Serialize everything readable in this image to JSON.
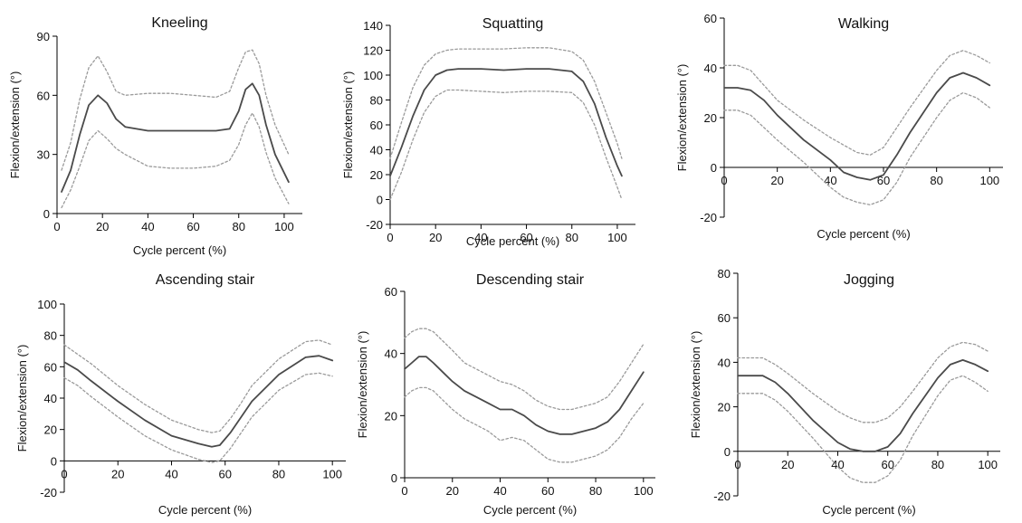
{
  "figure": {
    "line_color": "#4a4a4a",
    "band_color": "#9a9a9a",
    "axis_color": "#000000"
  },
  "chart_data": [
    {
      "type": "line",
      "title": "Kneeling",
      "xlabel": "Cycle percent (%)",
      "ylabel": "Flexion/extension (°)",
      "xlim": [
        0,
        108
      ],
      "ylim": [
        0,
        90
      ],
      "xticks": [
        0,
        20,
        40,
        60,
        80,
        100
      ],
      "yticks": [
        0,
        30,
        60,
        90
      ],
      "zero_line": false,
      "grid": false,
      "series": [
        {
          "style": "solid",
          "x": [
            2,
            6,
            10,
            14,
            18,
            22,
            26,
            30,
            40,
            50,
            60,
            70,
            76,
            80,
            83,
            86,
            89,
            92,
            96,
            102
          ],
          "y": [
            11,
            22,
            40,
            55,
            60,
            56,
            48,
            44,
            42,
            42,
            42,
            42,
            43,
            52,
            63,
            66,
            60,
            45,
            30,
            16
          ]
        },
        {
          "style": "dashed",
          "x": [
            2,
            6,
            10,
            14,
            18,
            22,
            26,
            30,
            40,
            50,
            60,
            70,
            76,
            80,
            83,
            86,
            89,
            92,
            96,
            102
          ],
          "y": [
            22,
            36,
            58,
            74,
            80,
            72,
            62,
            60,
            61,
            61,
            60,
            59,
            62,
            74,
            82,
            83,
            76,
            60,
            45,
            30
          ]
        },
        {
          "style": "dashed",
          "x": [
            2,
            6,
            10,
            14,
            18,
            22,
            26,
            30,
            40,
            50,
            60,
            70,
            76,
            80,
            83,
            86,
            89,
            92,
            96,
            102
          ],
          "y": [
            3,
            12,
            24,
            37,
            42,
            38,
            33,
            30,
            24,
            23,
            23,
            24,
            27,
            35,
            45,
            51,
            44,
            31,
            18,
            5
          ]
        }
      ]
    },
    {
      "type": "line",
      "title": "Squatting",
      "xlabel": "Cycle percent (%)",
      "ylabel": "Flexion/extension (°)",
      "xlim": [
        0,
        108
      ],
      "ylim": [
        -20,
        140
      ],
      "xticks": [
        0,
        20,
        40,
        60,
        80,
        100
      ],
      "yticks": [
        -20,
        0,
        20,
        40,
        60,
        80,
        100,
        120,
        140
      ],
      "zero_line": false,
      "grid": false,
      "series": [
        {
          "style": "solid",
          "x": [
            0,
            5,
            10,
            15,
            20,
            25,
            30,
            40,
            50,
            60,
            70,
            80,
            85,
            90,
            95,
            100,
            102
          ],
          "y": [
            19,
            42,
            67,
            88,
            100,
            104,
            105,
            105,
            104,
            105,
            105,
            103,
            95,
            77,
            50,
            27,
            19
          ]
        },
        {
          "style": "dashed",
          "x": [
            0,
            5,
            10,
            15,
            20,
            25,
            30,
            40,
            50,
            60,
            70,
            80,
            85,
            90,
            95,
            100,
            102
          ],
          "y": [
            33,
            62,
            90,
            108,
            117,
            120,
            121,
            121,
            121,
            122,
            122,
            119,
            112,
            95,
            70,
            45,
            33
          ]
        },
        {
          "style": "dashed",
          "x": [
            0,
            5,
            10,
            15,
            20,
            25,
            30,
            40,
            50,
            60,
            70,
            80,
            85,
            90,
            95,
            100,
            102
          ],
          "y": [
            0,
            22,
            48,
            70,
            83,
            88,
            88,
            87,
            86,
            87,
            87,
            86,
            78,
            60,
            34,
            10,
            0
          ]
        }
      ]
    },
    {
      "type": "line",
      "title": "Walking",
      "xlabel": "Cycle percent (%)",
      "ylabel": "Flexion/extension (°)",
      "xlim": [
        0,
        105
      ],
      "ylim": [
        -20,
        60
      ],
      "xticks": [
        0,
        20,
        40,
        60,
        80,
        100
      ],
      "yticks": [
        -20,
        0,
        20,
        40,
        60
      ],
      "zero_line": true,
      "grid": false,
      "series": [
        {
          "style": "solid",
          "x": [
            0,
            5,
            10,
            15,
            20,
            30,
            40,
            45,
            50,
            55,
            60,
            65,
            70,
            80,
            85,
            90,
            95,
            100
          ],
          "y": [
            32,
            32,
            31,
            27,
            21,
            11,
            3,
            -2,
            -4,
            -5,
            -3,
            5,
            14,
            30,
            36,
            38,
            36,
            33
          ]
        },
        {
          "style": "dashed",
          "x": [
            0,
            5,
            10,
            15,
            20,
            30,
            40,
            45,
            50,
            55,
            60,
            65,
            70,
            80,
            85,
            90,
            95,
            100
          ],
          "y": [
            41,
            41,
            39,
            33,
            27,
            19,
            12,
            9,
            6,
            5,
            8,
            16,
            24,
            39,
            45,
            47,
            45,
            42
          ]
        },
        {
          "style": "dashed",
          "x": [
            0,
            5,
            10,
            15,
            20,
            30,
            40,
            45,
            50,
            55,
            60,
            65,
            70,
            80,
            85,
            90,
            95,
            100
          ],
          "y": [
            23,
            23,
            21,
            16,
            11,
            2,
            -8,
            -12,
            -14,
            -15,
            -13,
            -6,
            4,
            20,
            27,
            30,
            28,
            24
          ]
        }
      ]
    },
    {
      "type": "line",
      "title": "Ascending stair",
      "xlabel": "Cycle percent (%)",
      "ylabel": "Flexion/extension (°)",
      "xlim": [
        0,
        105
      ],
      "ylim": [
        -20,
        100
      ],
      "xticks": [
        0,
        20,
        40,
        60,
        80,
        100
      ],
      "yticks": [
        -20,
        0,
        20,
        40,
        60,
        80,
        100
      ],
      "zero_line": true,
      "grid": false,
      "series": [
        {
          "style": "solid",
          "x": [
            0,
            5,
            10,
            20,
            30,
            40,
            50,
            55,
            58,
            62,
            66,
            70,
            80,
            90,
            95,
            100
          ],
          "y": [
            63,
            58,
            51,
            38,
            26,
            16,
            11,
            9,
            10,
            18,
            28,
            38,
            55,
            66,
            67,
            64
          ]
        },
        {
          "style": "dashed",
          "x": [
            0,
            5,
            10,
            20,
            30,
            40,
            50,
            55,
            58,
            62,
            66,
            70,
            80,
            90,
            95,
            100
          ],
          "y": [
            74,
            68,
            62,
            48,
            36,
            26,
            20,
            18,
            19,
            27,
            37,
            48,
            65,
            76,
            77,
            74
          ]
        },
        {
          "style": "dashed",
          "x": [
            0,
            5,
            10,
            20,
            30,
            40,
            50,
            55,
            58,
            62,
            66,
            70,
            80,
            90,
            95,
            100
          ],
          "y": [
            53,
            48,
            41,
            28,
            16,
            7,
            1,
            -1,
            0,
            8,
            18,
            28,
            45,
            55,
            56,
            54
          ]
        }
      ]
    },
    {
      "type": "line",
      "title": "Descending stair",
      "xlabel": "Cycle percent (%)",
      "ylabel": "Flexion/extension (°)",
      "xlim": [
        0,
        105
      ],
      "ylim": [
        0,
        60
      ],
      "xticks": [
        0,
        20,
        40,
        60,
        80,
        100
      ],
      "yticks": [
        0,
        20,
        40,
        60
      ],
      "zero_line": false,
      "grid": false,
      "series": [
        {
          "style": "solid",
          "x": [
            0,
            3,
            6,
            9,
            12,
            16,
            20,
            25,
            30,
            35,
            40,
            45,
            50,
            55,
            60,
            65,
            70,
            75,
            80,
            85,
            90,
            95,
            100
          ],
          "y": [
            35,
            37,
            39,
            39,
            37,
            34,
            31,
            28,
            26,
            24,
            22,
            22,
            20,
            17,
            15,
            14,
            14,
            15,
            16,
            18,
            22,
            28,
            34
          ]
        },
        {
          "style": "dashed",
          "x": [
            0,
            3,
            6,
            9,
            12,
            16,
            20,
            25,
            30,
            35,
            40,
            45,
            50,
            55,
            60,
            65,
            70,
            75,
            80,
            85,
            90,
            95,
            100
          ],
          "y": [
            45,
            47,
            48,
            48,
            47,
            44,
            41,
            37,
            35,
            33,
            31,
            30,
            28,
            25,
            23,
            22,
            22,
            23,
            24,
            26,
            31,
            37,
            43
          ]
        },
        {
          "style": "dashed",
          "x": [
            0,
            3,
            6,
            9,
            12,
            16,
            20,
            25,
            30,
            35,
            40,
            45,
            50,
            55,
            60,
            65,
            70,
            75,
            80,
            85,
            90,
            95,
            100
          ],
          "y": [
            26,
            28,
            29,
            29,
            28,
            25,
            22,
            19,
            17,
            15,
            12,
            13,
            12,
            9,
            6,
            5,
            5,
            6,
            7,
            9,
            13,
            19,
            24
          ]
        }
      ]
    },
    {
      "type": "line",
      "title": "Jogging",
      "xlabel": "Cycle percent (%)",
      "ylabel": "Flexion/extension (°)",
      "xlim": [
        0,
        105
      ],
      "ylim": [
        -20,
        80
      ],
      "xticks": [
        0,
        20,
        40,
        60,
        80,
        100
      ],
      "yticks": [
        -20,
        0,
        20,
        40,
        60,
        80
      ],
      "zero_line": true,
      "grid": false,
      "series": [
        {
          "style": "solid",
          "x": [
            0,
            5,
            10,
            15,
            20,
            30,
            40,
            45,
            50,
            55,
            60,
            65,
            70,
            80,
            85,
            90,
            95,
            100
          ],
          "y": [
            34,
            34,
            34,
            31,
            26,
            14,
            4,
            1,
            0,
            0,
            2,
            8,
            17,
            33,
            39,
            41,
            39,
            36
          ]
        },
        {
          "style": "dashed",
          "x": [
            0,
            5,
            10,
            15,
            20,
            30,
            40,
            45,
            50,
            55,
            60,
            65,
            70,
            80,
            85,
            90,
            95,
            100
          ],
          "y": [
            42,
            42,
            42,
            39,
            35,
            26,
            18,
            15,
            13,
            13,
            15,
            20,
            27,
            42,
            47,
            49,
            48,
            45
          ]
        },
        {
          "style": "dashed",
          "x": [
            0,
            5,
            10,
            15,
            20,
            30,
            40,
            45,
            50,
            55,
            60,
            65,
            70,
            80,
            85,
            90,
            95,
            100
          ],
          "y": [
            26,
            26,
            26,
            23,
            18,
            6,
            -7,
            -12,
            -14,
            -14,
            -11,
            -4,
            7,
            25,
            32,
            34,
            31,
            27
          ]
        }
      ]
    }
  ]
}
